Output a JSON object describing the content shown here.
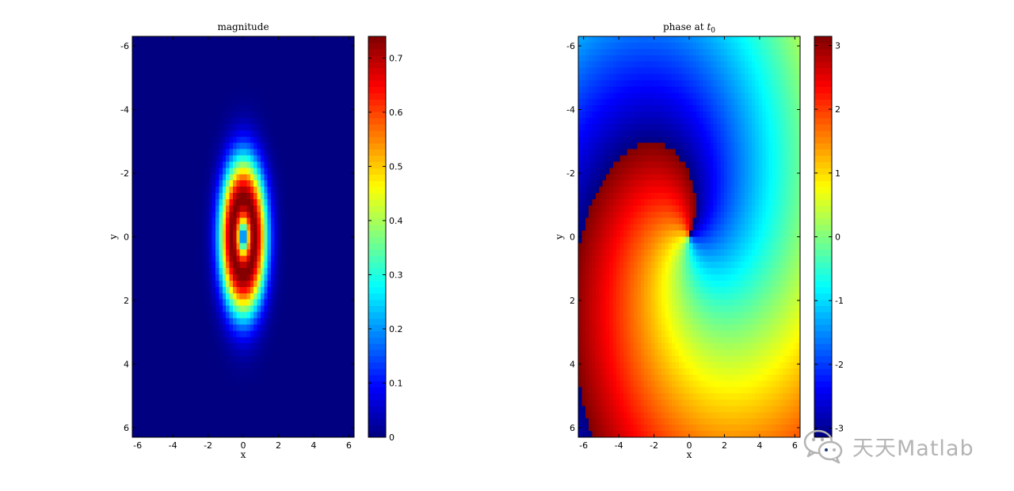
{
  "chart_data": [
    {
      "type": "heatmap",
      "title": "magnitude",
      "xlabel": "x",
      "ylabel": "y",
      "xlim": [
        -6.3,
        6.3
      ],
      "ylim": [
        -6.3,
        6.3
      ],
      "y_direction": "reversed",
      "xticks": [
        -6,
        -4,
        -2,
        0,
        2,
        4,
        6
      ],
      "yticks": [
        -6,
        -4,
        -2,
        0,
        2,
        4,
        6
      ],
      "colormap": "jet",
      "grid": 64,
      "field": "vortex magnitude: zero at center, ring maximum ~0.74 at elliptical radius ~0.65 (semi-axes x≈0.65, y≈1.2)",
      "peak": 0.74,
      "semi_axis_x": 0.65,
      "semi_axis_y": 1.2,
      "colorbar": {
        "min": 0,
        "max": 0.74,
        "ticks": [
          0,
          0.1,
          0.2,
          0.3,
          0.4,
          0.5,
          0.6,
          0.7
        ]
      }
    },
    {
      "type": "heatmap",
      "title_prefix": "phase at ",
      "title_var": "t",
      "title_sub": "0",
      "xlabel": "x",
      "ylabel": "y",
      "xlim": [
        -6.3,
        6.3
      ],
      "ylim": [
        -6.3,
        6.3
      ],
      "y_direction": "reversed",
      "xticks": [
        -6,
        -4,
        -2,
        0,
        2,
        4,
        6
      ],
      "yticks": [
        -6,
        -4,
        -2,
        0,
        2,
        4,
        6
      ],
      "colormap": "jet",
      "grid": 64,
      "field": "wrapped spiral phase in [-pi, pi], branch cut toward upper center",
      "colorbar": {
        "min": -3.1416,
        "max": 3.1416,
        "ticks": [
          -3,
          -2,
          -1,
          0,
          1,
          2,
          3
        ]
      }
    }
  ],
  "watermark": {
    "text": "天天Matlab",
    "icon": "wechat-icon"
  },
  "colors": {
    "background": "#ffffff",
    "watermark": "#b4b4b4"
  }
}
